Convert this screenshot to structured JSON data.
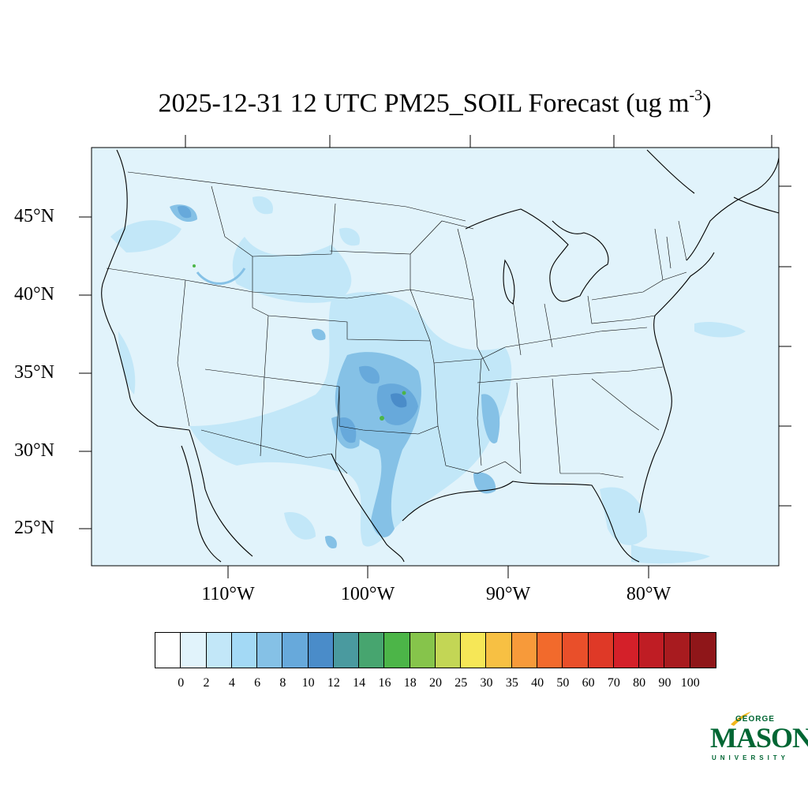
{
  "title": {
    "main": "2025-12-31 12 UTC PM25_SOIL Forecast (ug m",
    "superscript": "-3",
    "suffix": ")"
  },
  "lat_labels": [
    "45°N",
    "40°N",
    "35°N",
    "30°N",
    "25°N"
  ],
  "lon_labels": [
    "110°W",
    "100°W",
    "90°W",
    "80°W"
  ],
  "colorbar": {
    "ticks": [
      "0",
      "2",
      "4",
      "6",
      "8",
      "10",
      "12",
      "14",
      "16",
      "18",
      "20",
      "25",
      "30",
      "35",
      "40",
      "50",
      "60",
      "70",
      "80",
      "90",
      "100"
    ],
    "colors": [
      "#ffffff",
      "#e1f3fb",
      "#c2e7f8",
      "#a3d9f5",
      "#85c1e6",
      "#67a9db",
      "#4a8cc9",
      "#4a9a9f",
      "#47a56f",
      "#4cb548",
      "#86c44b",
      "#c3d655",
      "#f6e757",
      "#f7c043",
      "#f79a3a",
      "#f26a2c",
      "#e94f2a",
      "#df3927",
      "#d42029",
      "#bf1d24",
      "#a81b1f",
      "#8f1619"
    ]
  },
  "logo": {
    "george": "GEORGE",
    "mason": "MASON",
    "university": "UNIVERSITY"
  }
}
